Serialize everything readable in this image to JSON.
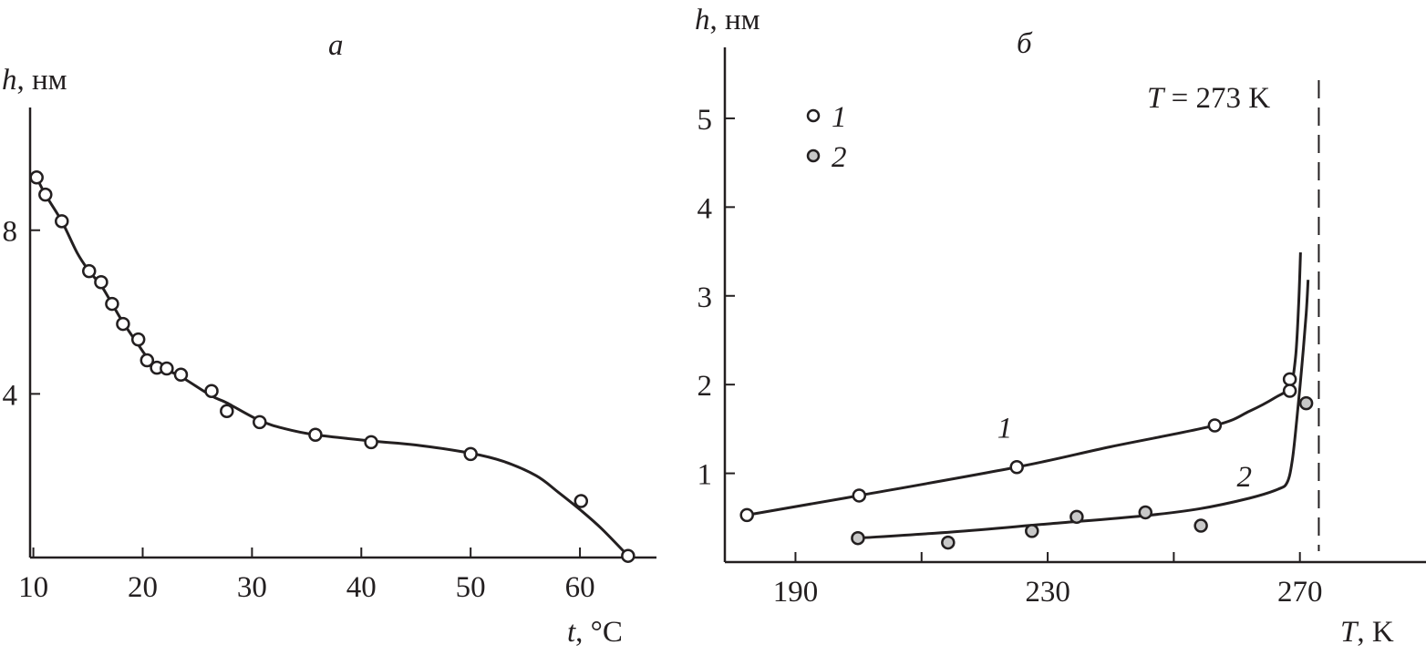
{
  "chart_data": [
    {
      "type": "line",
      "panel_label": "а",
      "xlabel_var": "t",
      "xlabel_unit": ", °C",
      "ylabel_var": "h",
      "ylabel_unit": ", нм",
      "xlim": [
        9.7,
        67
      ],
      "ylim": [
        0,
        11
      ],
      "xticks": [
        10,
        20,
        30,
        40,
        50,
        60
      ],
      "xtick_labels": [
        "10",
        "20",
        "30",
        "40",
        "50",
        "60"
      ],
      "yticks": [
        4,
        8
      ],
      "ytick_labels": [
        "4",
        "8"
      ],
      "points": {
        "x": [
          10.3,
          11.1,
          12.6,
          15.1,
          16.2,
          17.2,
          18.2,
          19.6,
          20.4,
          21.3,
          22.2,
          23.5,
          26.3,
          27.7,
          30.7,
          35.8,
          40.9,
          50.0,
          60.1,
          64.4
        ],
        "y": [
          9.29,
          8.87,
          8.22,
          7.0,
          6.73,
          6.2,
          5.71,
          5.33,
          4.82,
          4.64,
          4.62,
          4.47,
          4.07,
          3.58,
          3.31,
          3.0,
          2.82,
          2.53,
          1.38,
          0.04
        ]
      },
      "curve": {
        "x": [
          10.3,
          11.1,
          12.6,
          14,
          15.1,
          16.2,
          17.2,
          18.2,
          19.6,
          20.4,
          21.3,
          22.2,
          23.5,
          26.3,
          27.7,
          30.7,
          33,
          35.8,
          40.9,
          45,
          50,
          53,
          56,
          58,
          60.1,
          62,
          64.4
        ],
        "y": [
          9.29,
          8.87,
          8.22,
          7.45,
          7.0,
          6.65,
          6.2,
          5.75,
          5.2,
          4.9,
          4.7,
          4.58,
          4.42,
          3.95,
          3.78,
          3.35,
          3.15,
          3.0,
          2.85,
          2.75,
          2.55,
          2.35,
          2.0,
          1.6,
          1.15,
          0.7,
          0.04
        ]
      }
    },
    {
      "type": "line",
      "panel_label": "б",
      "xlabel_var": "T",
      "xlabel_unit": ", K",
      "ylabel_var": "h",
      "ylabel_unit": ", нм",
      "xlim": [
        178.8,
        290
      ],
      "ylim": [
        0,
        5.8
      ],
      "xticks": [
        190,
        210,
        230,
        250,
        270
      ],
      "xtick_labels": [
        "190",
        "",
        "230",
        "",
        "270"
      ],
      "yticks": [
        1,
        2,
        3,
        4,
        5
      ],
      "ytick_labels": [
        "1",
        "2",
        "3",
        "4",
        "5"
      ],
      "reference_line": {
        "x": 273,
        "label_var": "T",
        "label_rest": " = 273 K"
      },
      "legend": {
        "position": "top-left",
        "entries": [
          "1",
          "2"
        ]
      },
      "series": [
        {
          "name": "1",
          "marker": "open-circle",
          "fill": "#ffffff",
          "points": {
            "x": [
              182.3,
              200.1,
              225.1,
              256.5,
              268.4,
              268.4
            ],
            "y": [
              0.53,
              0.75,
              1.07,
              1.54,
              2.06,
              1.93
            ]
          },
          "curve": {
            "x": [
              182.3,
              200.1,
              225.1,
              240,
              256.5,
              262,
              266,
              268.4,
              269.3,
              269.8,
              270.1
            ],
            "y": [
              0.53,
              0.75,
              1.07,
              1.3,
              1.54,
              1.7,
              1.85,
              1.98,
              2.3,
              2.9,
              3.49
            ]
          },
          "curve_label": "1",
          "curve_label_at": [
            222,
            1.4
          ]
        },
        {
          "name": "2",
          "marker": "filled-circle",
          "fill": "#c8c8c8",
          "points": {
            "x": [
              199.9,
              214.2,
              227.5,
              234.6,
              245.5,
              254.3,
              271.0
            ],
            "y": [
              0.27,
              0.22,
              0.35,
              0.51,
              0.56,
              0.41,
              1.79
            ]
          },
          "curve": {
            "x": [
              199.9,
              215,
              230,
              245,
              254,
              262,
              266.5,
              268,
              268.8,
              269.5,
              270.3,
              271,
              271.3
            ],
            "y": [
              0.27,
              0.34,
              0.43,
              0.52,
              0.6,
              0.72,
              0.82,
              0.9,
              1.15,
              1.6,
              2.2,
              2.8,
              3.18
            ]
          },
          "curve_label": "2",
          "curve_label_at": [
            260,
            0.85
          ]
        }
      ]
    }
  ]
}
